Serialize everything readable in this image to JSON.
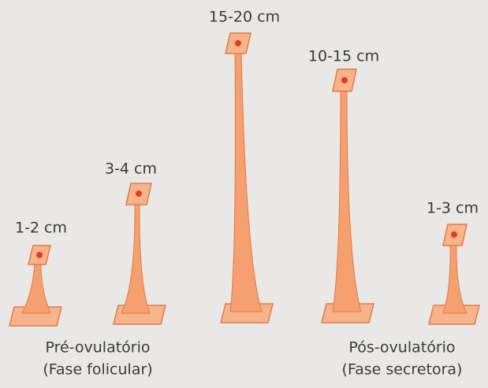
{
  "items": [
    {
      "label": "1-2 cm"
    },
    {
      "label": "3-4 cm"
    },
    {
      "label": "15-20 cm"
    },
    {
      "label": "10-15 cm"
    },
    {
      "label": "1-3 cm"
    }
  ],
  "phases": [
    {
      "title": "Pré-ovulatório",
      "subtitle": "(Fase folicular)"
    },
    {
      "title": "Pós-ovulatório",
      "subtitle": "(Fase secretora)"
    }
  ]
}
